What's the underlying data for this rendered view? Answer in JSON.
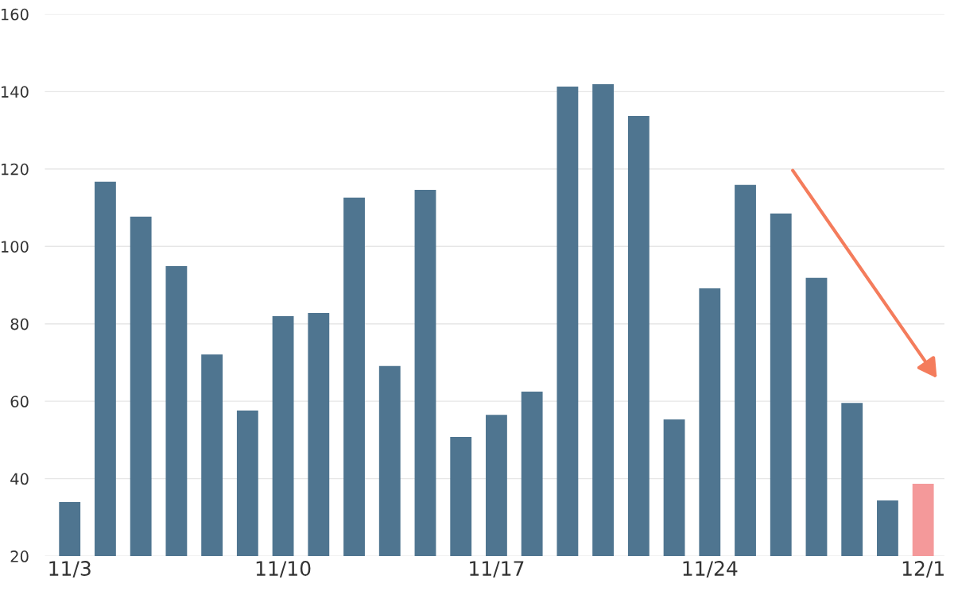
{
  "chart_data": {
    "type": "bar",
    "categories": [
      "11/3",
      null,
      null,
      null,
      null,
      null,
      "11/10",
      null,
      null,
      null,
      null,
      null,
      "11/17",
      null,
      null,
      null,
      null,
      null,
      "11/24",
      null,
      null,
      null,
      null,
      null,
      "12/1"
    ],
    "values": [
      34,
      116.7,
      107.7,
      94.9,
      72.1,
      57.6,
      82,
      82.8,
      112.6,
      69.1,
      114.6,
      50.8,
      56.5,
      62.5,
      141.3,
      141.9,
      133.7,
      55.3,
      89.2,
      115.9,
      108.5,
      91.9,
      59.6,
      34.4,
      38.7
    ],
    "colors": [
      "#4f7590",
      "#4f7590",
      "#4f7590",
      "#4f7590",
      "#4f7590",
      "#4f7590",
      "#4f7590",
      "#4f7590",
      "#4f7590",
      "#4f7590",
      "#4f7590",
      "#4f7590",
      "#4f7590",
      "#4f7590",
      "#4f7590",
      "#4f7590",
      "#4f7590",
      "#4f7590",
      "#4f7590",
      "#4f7590",
      "#4f7590",
      "#4f7590",
      "#4f7590",
      "#4f7590",
      "#f4999a"
    ],
    "ylim": [
      20,
      160
    ],
    "yticks": [
      20,
      40,
      60,
      80,
      100,
      120,
      140,
      160
    ],
    "grid": "y"
  }
}
